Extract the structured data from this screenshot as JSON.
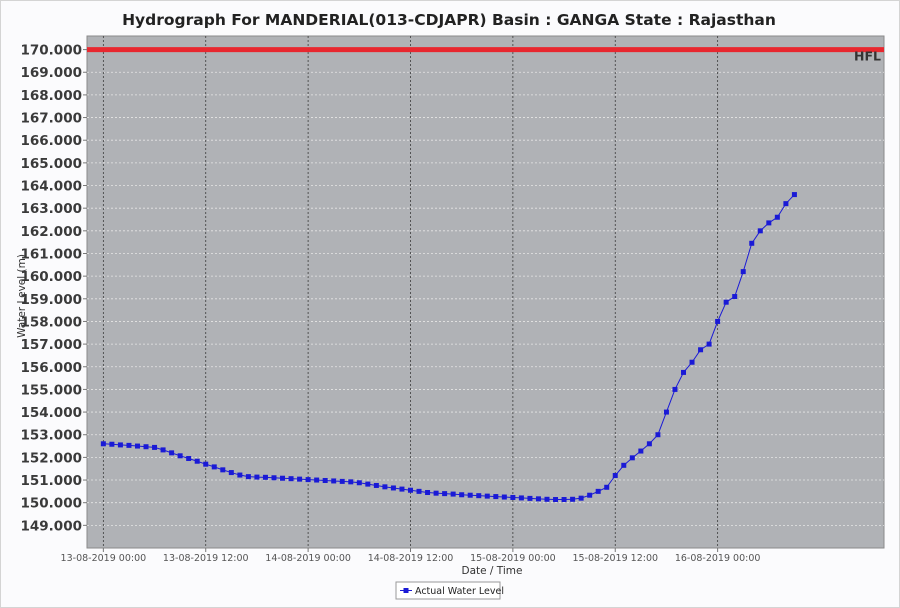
{
  "chart_data": {
    "type": "line",
    "title": "Hydrograph For MANDERIAL(013-CDJAPR) Basin : GANGA State : Rajasthan",
    "xlabel": "Date / Time",
    "ylabel": "Water Level (m)",
    "ylim": [
      148.0,
      170.6
    ],
    "xlim": [
      "2019-08-12 22:05",
      "2019-08-16 19:30"
    ],
    "y_ticks": [
      "149.000",
      "150.000",
      "151.000",
      "152.000",
      "153.000",
      "154.000",
      "155.000",
      "156.000",
      "157.000",
      "158.000",
      "159.000",
      "160.000",
      "161.000",
      "162.000",
      "163.000",
      "164.000",
      "165.000",
      "166.000",
      "167.000",
      "168.000",
      "169.000",
      "170.000"
    ],
    "x_ticks": [
      {
        "t": "2019-08-13 00:00",
        "label": "13-08-2019 00:00"
      },
      {
        "t": "2019-08-13 12:00",
        "label": "13-08-2019 12:00"
      },
      {
        "t": "2019-08-14 00:00",
        "label": "14-08-2019 00:00"
      },
      {
        "t": "2019-08-14 12:00",
        "label": "14-08-2019 12:00"
      },
      {
        "t": "2019-08-15 00:00",
        "label": "15-08-2019 00:00"
      },
      {
        "t": "2019-08-15 12:00",
        "label": "15-08-2019 12:00"
      },
      {
        "t": "2019-08-16 00:00",
        "label": "16-08-2019 00:00"
      }
    ],
    "reference_line": {
      "label": "HFL",
      "value": 170.0,
      "color": "#e8272f"
    },
    "grid": true,
    "legend_position": "bottom-center",
    "series": [
      {
        "name": "Actual Water Level",
        "color": "#1a1ad6",
        "marker": "square",
        "points": [
          [
            "2019-08-13 00:00",
            152.6
          ],
          [
            "2019-08-13 01:00",
            152.58
          ],
          [
            "2019-08-13 02:00",
            152.55
          ],
          [
            "2019-08-13 03:00",
            152.53
          ],
          [
            "2019-08-13 04:00",
            152.5
          ],
          [
            "2019-08-13 05:00",
            152.47
          ],
          [
            "2019-08-13 06:00",
            152.44
          ],
          [
            "2019-08-13 07:00",
            152.33
          ],
          [
            "2019-08-13 08:00",
            152.2
          ],
          [
            "2019-08-13 09:00",
            152.07
          ],
          [
            "2019-08-13 10:00",
            151.95
          ],
          [
            "2019-08-13 11:00",
            151.83
          ],
          [
            "2019-08-13 12:00",
            151.7
          ],
          [
            "2019-08-13 13:00",
            151.58
          ],
          [
            "2019-08-13 14:00",
            151.45
          ],
          [
            "2019-08-13 15:00",
            151.33
          ],
          [
            "2019-08-13 16:00",
            151.22
          ],
          [
            "2019-08-13 17:00",
            151.15
          ],
          [
            "2019-08-13 18:00",
            151.13
          ],
          [
            "2019-08-13 19:00",
            151.12
          ],
          [
            "2019-08-13 20:00",
            151.1
          ],
          [
            "2019-08-13 21:00",
            151.08
          ],
          [
            "2019-08-13 22:00",
            151.06
          ],
          [
            "2019-08-13 23:00",
            151.04
          ],
          [
            "2019-08-14 00:00",
            151.02
          ],
          [
            "2019-08-14 01:00",
            151.0
          ],
          [
            "2019-08-14 02:00",
            150.98
          ],
          [
            "2019-08-14 03:00",
            150.96
          ],
          [
            "2019-08-14 04:00",
            150.94
          ],
          [
            "2019-08-14 05:00",
            150.92
          ],
          [
            "2019-08-14 06:00",
            150.88
          ],
          [
            "2019-08-14 07:00",
            150.82
          ],
          [
            "2019-08-14 08:00",
            150.76
          ],
          [
            "2019-08-14 09:00",
            150.7
          ],
          [
            "2019-08-14 10:00",
            150.65
          ],
          [
            "2019-08-14 11:00",
            150.6
          ],
          [
            "2019-08-14 12:00",
            150.55
          ],
          [
            "2019-08-14 13:00",
            150.5
          ],
          [
            "2019-08-14 14:00",
            150.45
          ],
          [
            "2019-08-14 15:00",
            150.42
          ],
          [
            "2019-08-14 16:00",
            150.4
          ],
          [
            "2019-08-14 17:00",
            150.38
          ],
          [
            "2019-08-14 18:00",
            150.35
          ],
          [
            "2019-08-14 19:00",
            150.33
          ],
          [
            "2019-08-14 20:00",
            150.31
          ],
          [
            "2019-08-14 21:00",
            150.29
          ],
          [
            "2019-08-14 22:00",
            150.27
          ],
          [
            "2019-08-14 23:00",
            150.25
          ],
          [
            "2019-08-15 00:00",
            150.23
          ],
          [
            "2019-08-15 01:00",
            150.21
          ],
          [
            "2019-08-15 02:00",
            150.19
          ],
          [
            "2019-08-15 03:00",
            150.17
          ],
          [
            "2019-08-15 04:00",
            150.15
          ],
          [
            "2019-08-15 05:00",
            150.14
          ],
          [
            "2019-08-15 06:00",
            150.14
          ],
          [
            "2019-08-15 07:00",
            150.15
          ],
          [
            "2019-08-15 08:00",
            150.2
          ],
          [
            "2019-08-15 09:00",
            150.33
          ],
          [
            "2019-08-15 10:00",
            150.5
          ],
          [
            "2019-08-15 11:00",
            150.68
          ],
          [
            "2019-08-15 12:00",
            151.2
          ],
          [
            "2019-08-15 13:00",
            151.65
          ],
          [
            "2019-08-15 14:00",
            151.98
          ],
          [
            "2019-08-15 15:00",
            152.28
          ],
          [
            "2019-08-15 16:00",
            152.6
          ],
          [
            "2019-08-15 17:00",
            153.0
          ],
          [
            "2019-08-15 18:00",
            154.0
          ],
          [
            "2019-08-15 19:00",
            155.0
          ],
          [
            "2019-08-15 20:00",
            155.75
          ],
          [
            "2019-08-15 21:00",
            156.2
          ],
          [
            "2019-08-15 22:00",
            156.75
          ],
          [
            "2019-08-15 23:00",
            157.0
          ],
          [
            "2019-08-16 00:00",
            158.0
          ],
          [
            "2019-08-16 01:00",
            158.85
          ],
          [
            "2019-08-16 02:00",
            159.1
          ],
          [
            "2019-08-16 03:00",
            160.2
          ],
          [
            "2019-08-16 04:00",
            161.45
          ],
          [
            "2019-08-16 05:00",
            162.0
          ],
          [
            "2019-08-16 06:00",
            162.35
          ],
          [
            "2019-08-16 07:00",
            162.6
          ],
          [
            "2019-08-16 08:00",
            163.2
          ],
          [
            "2019-08-16 09:00",
            163.6
          ]
        ]
      }
    ]
  }
}
